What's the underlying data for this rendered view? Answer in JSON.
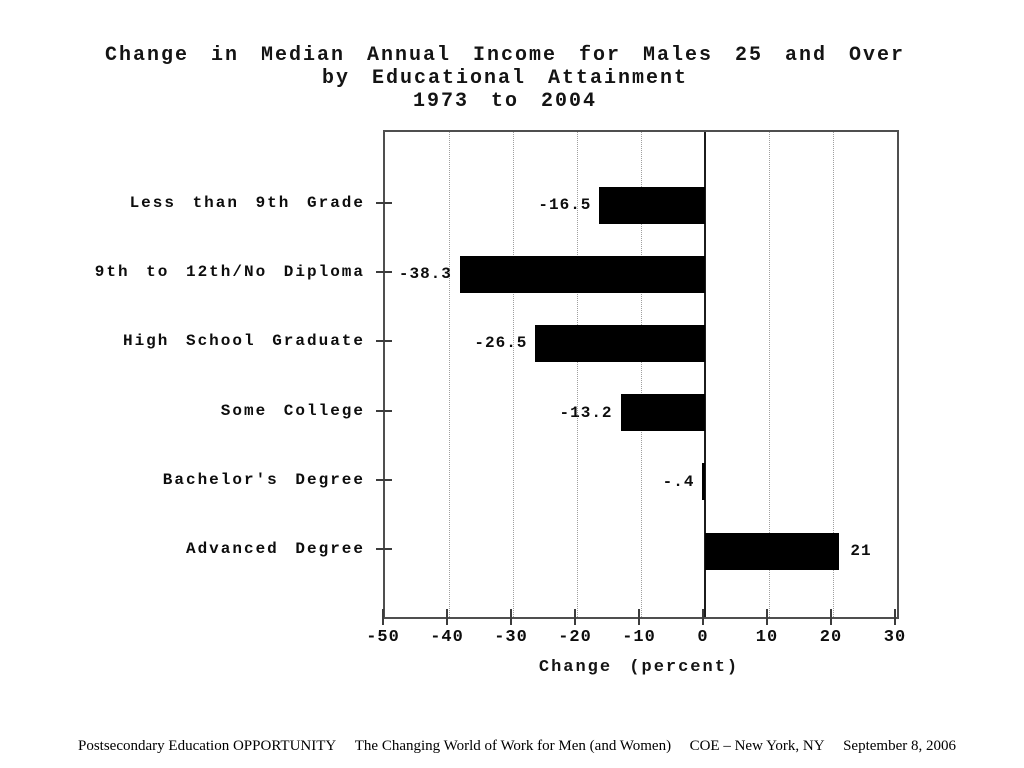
{
  "chart_data": {
    "type": "bar",
    "orientation": "horizontal",
    "title_lines": [
      "Change in Median Annual Income for Males 25 and Over",
      "by Educational Attainment",
      "1973 to 2004"
    ],
    "categories": [
      "Less than 9th Grade",
      "9th to 12th/No Diploma",
      "High School Graduate",
      "Some College",
      "Bachelor's Degree",
      "Advanced Degree"
    ],
    "values": [
      -16.5,
      -38.3,
      -26.5,
      -13.2,
      -0.4,
      21
    ],
    "value_labels": [
      "-16.5",
      "-38.3",
      "-26.5",
      "-13.2",
      "-.4",
      "21"
    ],
    "xlabel": "Change (percent)",
    "xlim": [
      -50,
      30
    ],
    "xticks": [
      -50,
      -40,
      -30,
      -20,
      -10,
      0,
      10,
      20,
      30
    ],
    "xtick_labels": [
      "-50",
      "-40",
      "-30",
      "-20",
      "-10",
      "0",
      "10",
      "20",
      "30"
    ],
    "grid": "vertical-dotted",
    "legend": "none",
    "bar_color": "#000000",
    "zero_line": true
  },
  "colors": {
    "bar": "#000000",
    "gridline": "#9f9f9f",
    "frame": "#4f4f4f",
    "zero_line": "#1c1c1c",
    "text": "#111111"
  },
  "footer": {
    "items": [
      "Postsecondary Education OPPORTUNITY",
      "The Changing World of Work for Men (and Women)",
      "COE – New York, NY",
      "September 8, 2006"
    ]
  }
}
